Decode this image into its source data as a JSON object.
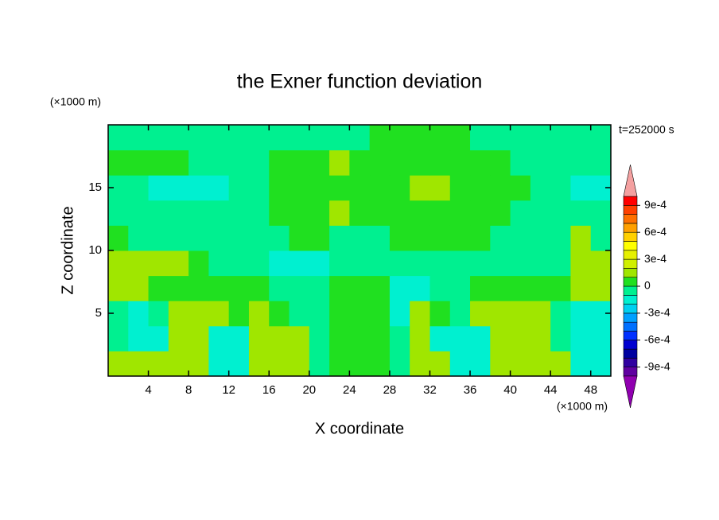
{
  "chart_data": {
    "type": "contour",
    "title": "the Exner function deviation",
    "xlabel": "X coordinate",
    "ylabel": "Z coordinate",
    "xunit": "(×1000 m)",
    "yunit": "(×1000 m)",
    "annotation": "t=252000 s",
    "xlim": [
      0,
      50
    ],
    "ylim": [
      0,
      20
    ],
    "xticks": [
      4,
      8,
      12,
      16,
      20,
      24,
      28,
      32,
      36,
      40,
      44,
      48
    ],
    "yticks": [
      5,
      10,
      15
    ],
    "x": [
      1,
      3,
      5,
      7,
      9,
      11,
      13,
      15,
      17,
      19,
      21,
      23,
      25,
      27,
      29,
      31,
      33,
      35,
      37,
      39,
      41,
      43,
      45,
      47,
      49
    ],
    "y": [
      1,
      3,
      5,
      7,
      9,
      11,
      13,
      15,
      17,
      19
    ],
    "values": [
      [
        0.00015,
        0.00015,
        0.00015,
        0.00015,
        0.00015,
        -0.00015,
        -0.00015,
        0.00015,
        0.00015,
        0.00015,
        -5e-05,
        5e-05,
        5e-05,
        5e-05,
        -5e-05,
        0.00015,
        0.00015,
        -0.00015,
        -0.00015,
        0.00015,
        0.00015,
        0.00015,
        0.00015,
        -0.00015,
        -0.00015
      ],
      [
        -5e-05,
        -0.00015,
        -0.00015,
        0.00015,
        0.00015,
        -0.00015,
        -0.00015,
        0.00015,
        0.00015,
        0.00015,
        -5e-05,
        5e-05,
        5e-05,
        5e-05,
        -5e-05,
        0.00015,
        -0.00015,
        -0.00015,
        -0.00015,
        0.00015,
        0.00015,
        0.00015,
        -5e-05,
        -0.00015,
        -0.00015
      ],
      [
        -5e-05,
        -0.00015,
        -5e-05,
        0.00015,
        0.00015,
        0.00015,
        5e-05,
        0.00015,
        5e-05,
        -5e-05,
        -5e-05,
        5e-05,
        5e-05,
        5e-05,
        -0.00015,
        0.00015,
        5e-05,
        -5e-05,
        0.00015,
        0.00015,
        0.00015,
        0.00015,
        -5e-05,
        -0.00015,
        -0.00015
      ],
      [
        0.00015,
        0.00015,
        5e-05,
        5e-05,
        5e-05,
        5e-05,
        5e-05,
        5e-05,
        -5e-05,
        -5e-05,
        -5e-05,
        5e-05,
        5e-05,
        5e-05,
        -0.00015,
        -0.00015,
        -5e-05,
        -5e-05,
        5e-05,
        5e-05,
        5e-05,
        5e-05,
        5e-05,
        0.00015,
        0.00015
      ],
      [
        0.00015,
        0.00015,
        0.00015,
        0.00015,
        5e-05,
        -5e-05,
        -5e-05,
        -5e-05,
        -0.00015,
        -0.00015,
        -0.00015,
        -5e-05,
        -5e-05,
        -5e-05,
        -5e-05,
        -5e-05,
        -5e-05,
        -5e-05,
        -5e-05,
        -5e-05,
        -5e-05,
        -5e-05,
        -5e-05,
        0.00015,
        0.00015
      ],
      [
        5e-05,
        -5e-05,
        -5e-05,
        -5e-05,
        -5e-05,
        -5e-05,
        -5e-05,
        -5e-05,
        -5e-05,
        5e-05,
        5e-05,
        -5e-05,
        -5e-05,
        -5e-05,
        5e-05,
        5e-05,
        5e-05,
        5e-05,
        5e-05,
        -5e-05,
        -5e-05,
        -5e-05,
        -5e-05,
        0.00015,
        -5e-05
      ],
      [
        -5e-05,
        -5e-05,
        -5e-05,
        -5e-05,
        -5e-05,
        -5e-05,
        -5e-05,
        -5e-05,
        5e-05,
        5e-05,
        5e-05,
        0.00015,
        5e-05,
        5e-05,
        5e-05,
        5e-05,
        5e-05,
        5e-05,
        5e-05,
        5e-05,
        -5e-05,
        -5e-05,
        -5e-05,
        -5e-05,
        -5e-05
      ],
      [
        -5e-05,
        -5e-05,
        -0.00015,
        -0.00015,
        -0.00015,
        -0.00015,
        -5e-05,
        -5e-05,
        5e-05,
        5e-05,
        5e-05,
        5e-05,
        5e-05,
        5e-05,
        5e-05,
        0.00015,
        0.00015,
        5e-05,
        5e-05,
        5e-05,
        5e-05,
        -5e-05,
        -5e-05,
        -0.00015,
        -0.00015
      ],
      [
        5e-05,
        5e-05,
        5e-05,
        5e-05,
        -5e-05,
        -5e-05,
        -5e-05,
        -5e-05,
        5e-05,
        5e-05,
        5e-05,
        0.00015,
        5e-05,
        5e-05,
        5e-05,
        5e-05,
        5e-05,
        5e-05,
        5e-05,
        5e-05,
        -5e-05,
        -5e-05,
        -5e-05,
        -5e-05,
        -5e-05
      ],
      [
        -5e-05,
        -5e-05,
        -5e-05,
        -5e-05,
        -5e-05,
        -5e-05,
        -5e-05,
        -5e-05,
        -5e-05,
        -5e-05,
        -5e-05,
        -5e-05,
        -5e-05,
        5e-05,
        5e-05,
        5e-05,
        5e-05,
        5e-05,
        -5e-05,
        -5e-05,
        -5e-05,
        -5e-05,
        -5e-05,
        -5e-05,
        -5e-05
      ]
    ],
    "levels": [
      -0.001,
      -0.0009,
      -0.0008,
      -0.0007,
      -0.0006,
      -0.0005,
      -0.0004,
      -0.0003,
      -0.0002,
      -0.0001,
      0,
      0.0001,
      0.0002,
      0.0003,
      0.0004,
      0.0005,
      0.0006,
      0.0007,
      0.0008,
      0.0009,
      0.001
    ],
    "colors": [
      "#6000a0",
      "#3000a0",
      "#0000a0",
      "#0000d0",
      "#0030ff",
      "#0070ff",
      "#00a0ff",
      "#00d0f0",
      "#00f0d0",
      "#00f090",
      "#20e020",
      "#a0e600",
      "#d0f000",
      "#e6f000",
      "#ffff00",
      "#ffd000",
      "#ffa000",
      "#ff7000",
      "#ff4000",
      "#ff0000"
    ],
    "extend_colors": {
      "above": "#f4a0a0",
      "below": "#9000b0"
    },
    "colorbar_ticks": [
      {
        "value": -0.0009,
        "label": "-9e-4"
      },
      {
        "value": -0.0006,
        "label": "-6e-4"
      },
      {
        "value": -0.0003,
        "label": "-3e-4"
      },
      0,
      {
        "value": 0.0003,
        "label": "3e-4"
      },
      {
        "value": 0.0006,
        "label": "6e-4"
      },
      {
        "value": 0.0009,
        "label": "9e-4"
      }
    ]
  }
}
